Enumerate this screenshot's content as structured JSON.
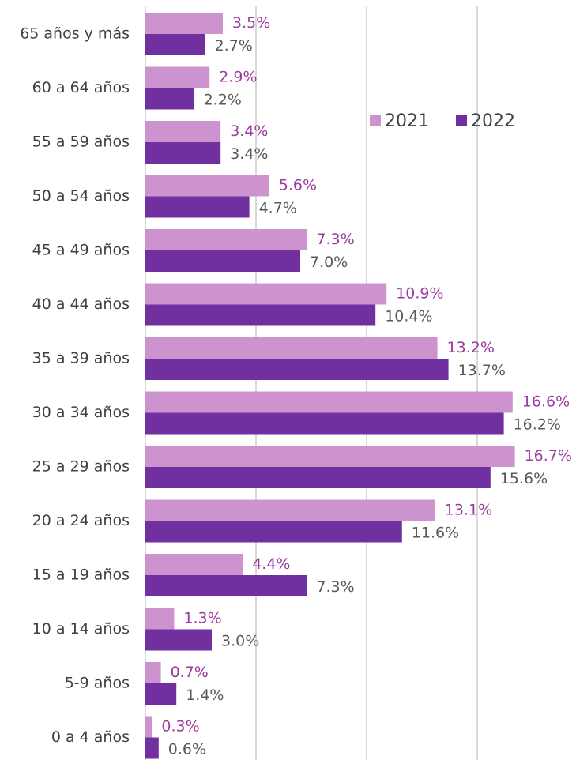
{
  "chart_data": {
    "type": "hbar",
    "categories": [
      "65 años y más",
      "60 a 64 años",
      "55 a 59 años",
      "50 a 54 años",
      "45 a 49 años",
      "40 a 44 años",
      "35 a 39 años",
      "30 a 34 años",
      "25 a 29 años",
      "20 a 24 años",
      "15 a 19 años",
      "10 a 14 años",
      "5-9 años",
      "0 a 4 años"
    ],
    "series": [
      {
        "name": "2021",
        "color": "#cd93cf",
        "label_color": "#9b3c9e",
        "values": [
          3.5,
          2.9,
          3.4,
          5.6,
          7.3,
          10.9,
          13.2,
          16.6,
          16.7,
          13.1,
          4.4,
          1.3,
          0.7,
          0.3
        ],
        "value_labels": [
          "3.5%",
          "2.9%",
          "3.4%",
          "5.6%",
          "7.3%",
          "10.9%",
          "13.2%",
          "16.6%",
          "16.7%",
          "13.1%",
          "4.4%",
          "1.3%",
          "0.7%",
          "0.3%"
        ]
      },
      {
        "name": "2022",
        "color": "#7030a0",
        "label_color": "#595959",
        "values": [
          2.7,
          2.2,
          3.4,
          4.7,
          7.0,
          10.4,
          13.7,
          16.2,
          15.6,
          11.6,
          7.3,
          3.0,
          1.4,
          0.6
        ],
        "value_labels": [
          "2.7%",
          "2.2%",
          "3.4%",
          "4.7%",
          "7.0%",
          "10.4%",
          "13.7%",
          "16.2%",
          "15.6%",
          "11.6%",
          "7.3%",
          "3.0%",
          "1.4%",
          "0.6%"
        ]
      }
    ],
    "xlim": [
      0,
      19.5
    ],
    "xticks": [
      0,
      5,
      10,
      15
    ],
    "grid": true,
    "legend": "upper right"
  }
}
